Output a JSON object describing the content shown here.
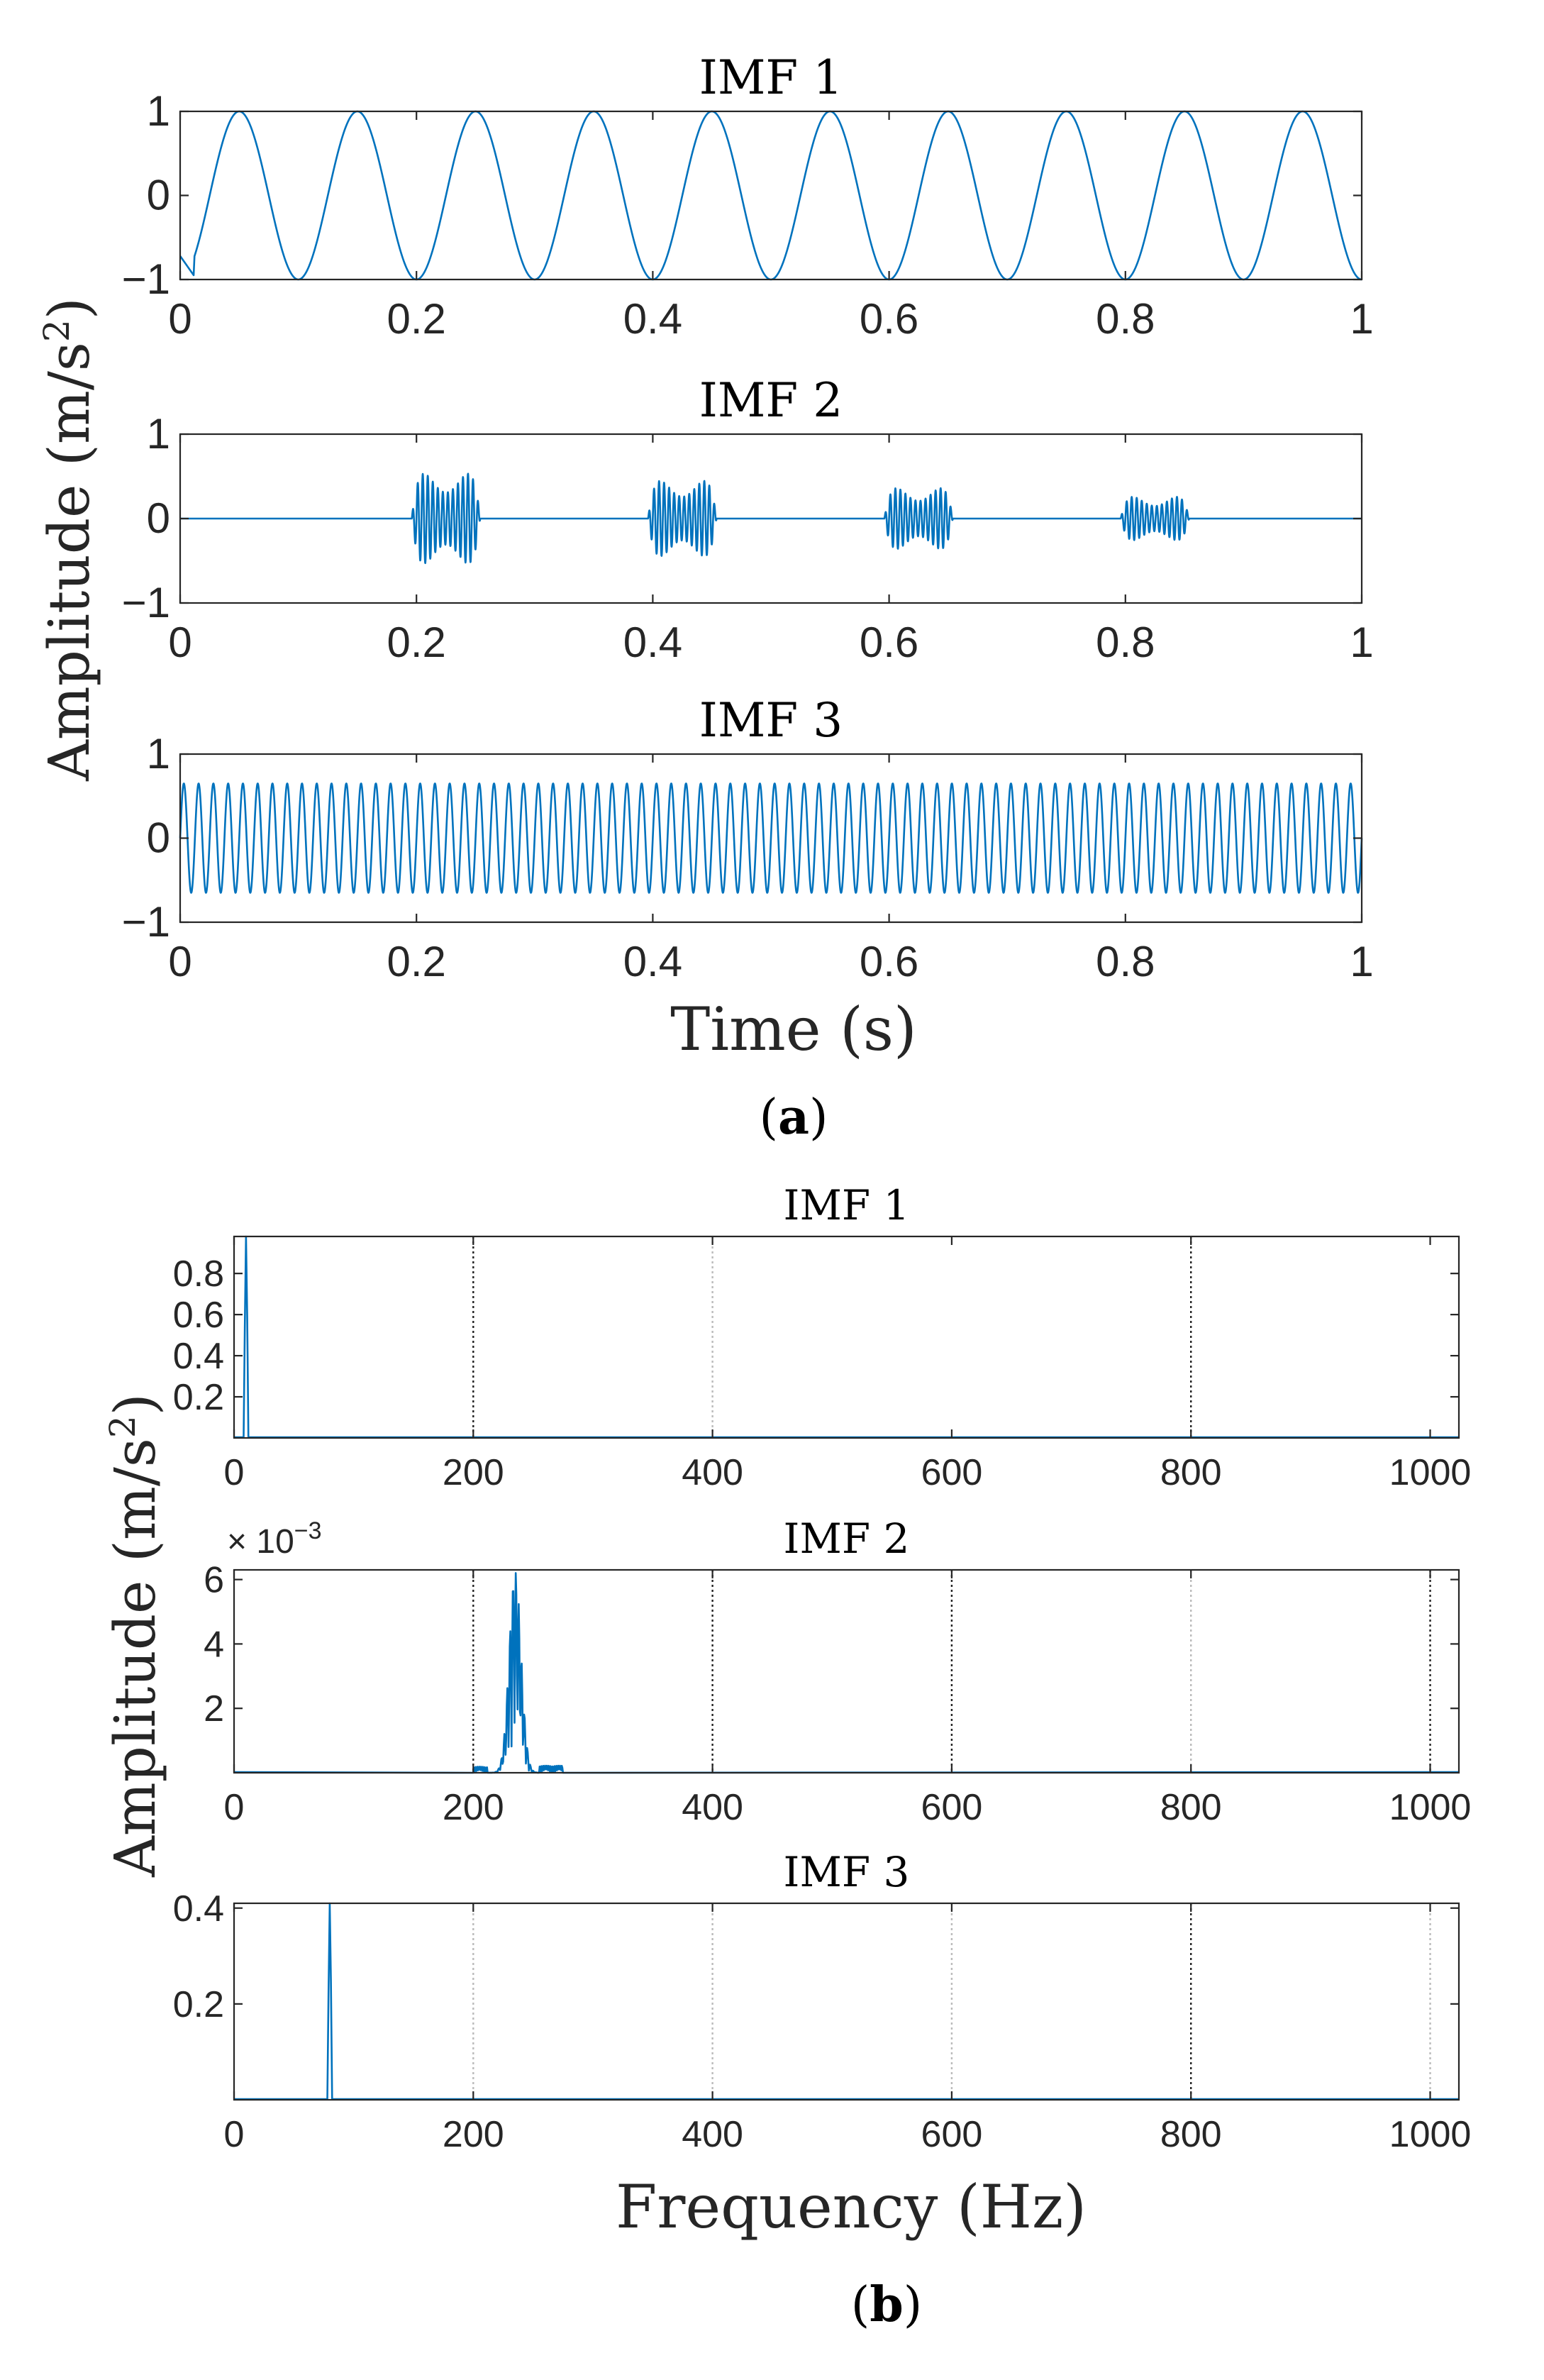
{
  "figure": {
    "panel_a_label": {
      "open": "(",
      "letter": "a",
      "close": ")"
    },
    "panel_b_label": {
      "open": "(",
      "letter": "b",
      "close": ")"
    },
    "colors": {
      "trace": "#0072BD",
      "axis": "#262626",
      "background": "#ffffff"
    }
  },
  "chart_data": [
    {
      "id": "time-domain",
      "panel": "a",
      "type": "line",
      "ylabel_base": "Amplitude (m/s",
      "ylabel_exp": "2",
      "ylabel_close": ")",
      "xlabel": "Time (s)",
      "xlim": [
        0,
        1
      ],
      "xticks": [
        0,
        0.2,
        0.4,
        0.6,
        0.8,
        1
      ],
      "xtick_labels": [
        "0",
        "0.2",
        "0.4",
        "0.6",
        "0.8",
        "1"
      ],
      "subplots": [
        {
          "title": "IMF 1",
          "ylim": [
            -1,
            1
          ],
          "yticks": [
            -1,
            0,
            1
          ],
          "ytick_labels": [
            "−1",
            "0",
            "1"
          ],
          "signal": {
            "kind": "sine",
            "frequency_hz": 10,
            "amplitude": 1,
            "peak_times": [
              0.05,
              0.15,
              0.25,
              0.35,
              0.45,
              0.55,
              0.65,
              0.75,
              0.85,
              0.95
            ]
          }
        },
        {
          "title": "IMF 2",
          "ylim": [
            -1,
            1
          ],
          "yticks": [
            -1,
            0,
            1
          ],
          "ytick_labels": [
            "−1",
            "0",
            "1"
          ],
          "signal": {
            "kind": "bursts",
            "carrier_hz": 235,
            "bursts": [
              {
                "start": 0.2,
                "end": 0.25,
                "amplitude": 0.62
              },
              {
                "start": 0.4,
                "end": 0.45,
                "amplitude": 0.52
              },
              {
                "start": 0.6,
                "end": 0.65,
                "amplitude": 0.42
              },
              {
                "start": 0.8,
                "end": 0.85,
                "amplitude": 0.3
              }
            ]
          }
        },
        {
          "title": "IMF 3",
          "ylim": [
            -1,
            1
          ],
          "yticks": [
            -1,
            0,
            1
          ],
          "ytick_labels": [
            "−1",
            "0",
            "1"
          ],
          "signal": {
            "kind": "sine",
            "frequency_hz": 80,
            "amplitude": 0.65
          }
        }
      ]
    },
    {
      "id": "frequency-domain",
      "panel": "b",
      "type": "line",
      "ylabel_base": "Amplitude (m/s",
      "ylabel_exp": "2",
      "ylabel_close": ")",
      "xlabel": "Frequency (Hz)",
      "xlim": [
        0,
        1024
      ],
      "xticks": [
        0,
        200,
        400,
        600,
        800,
        1000
      ],
      "xtick_labels": [
        "0",
        "200",
        "400",
        "600",
        "800",
        "1000"
      ],
      "subplots": [
        {
          "title": "IMF 1",
          "ylim": [
            0,
            0.98
          ],
          "yticks": [
            0.2,
            0.4,
            0.6,
            0.8
          ],
          "ytick_labels": [
            "0.2",
            "0.4",
            "0.6",
            "0.8"
          ],
          "exponent_label": "",
          "grid_lines": [
            {
              "x": 200,
              "style": "dark"
            },
            {
              "x": 400,
              "style": "light"
            },
            {
              "x": 800,
              "style": "dark"
            }
          ],
          "spectrum": {
            "kind": "peak",
            "frequency_hz": 10,
            "amplitude": 0.98
          }
        },
        {
          "title": "IMF 2",
          "ylim": [
            0,
            0.0063
          ],
          "yticks": [
            0.002,
            0.004,
            0.006
          ],
          "ytick_labels": [
            "2",
            "4",
            "6"
          ],
          "exponent_label": "× 10",
          "exponent_power": "−3",
          "grid_lines": [
            {
              "x": 200,
              "style": "dark"
            },
            {
              "x": 400,
              "style": "dark"
            },
            {
              "x": 600,
              "style": "dark"
            },
            {
              "x": 800,
              "style": "light"
            },
            {
              "x": 1000,
              "style": "dark"
            }
          ],
          "spectrum": {
            "kind": "band",
            "band_hz": [
              195,
              285
            ],
            "center_hz": 235,
            "peak_amplitude": 0.0063
          }
        },
        {
          "title": "IMF 3",
          "ylim": [
            0,
            0.41
          ],
          "yticks": [
            0.2,
            0.4
          ],
          "ytick_labels": [
            "0.2",
            "0.4"
          ],
          "exponent_label": "",
          "grid_lines": [
            {
              "x": 200,
              "style": "light"
            },
            {
              "x": 400,
              "style": "light"
            },
            {
              "x": 600,
              "style": "light"
            },
            {
              "x": 800,
              "style": "dark"
            },
            {
              "x": 1000,
              "style": "light"
            }
          ],
          "spectrum": {
            "kind": "peak",
            "frequency_hz": 80,
            "amplitude": 0.41
          }
        }
      ]
    }
  ]
}
